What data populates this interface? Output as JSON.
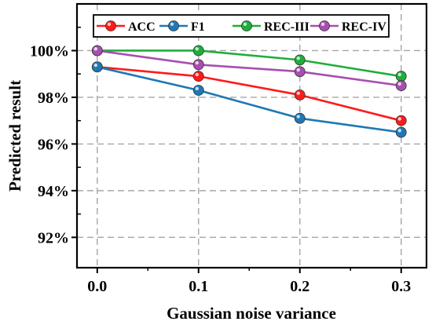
{
  "chart_data": {
    "type": "line",
    "title": "",
    "xlabel": "Gaussian noise variance",
    "ylabel": "Predicted result",
    "x": [
      0.0,
      0.1,
      0.2,
      0.3
    ],
    "x_tick_labels": [
      "0.0",
      "0.1",
      "0.2",
      "0.3"
    ],
    "xlim": [
      -0.02,
      0.325
    ],
    "ylim": [
      90.7,
      102.0
    ],
    "y_ticks": [
      92,
      94,
      96,
      98,
      100
    ],
    "y_tick_labels": [
      "92%",
      "94%",
      "96%",
      "98%",
      "100%"
    ],
    "grid": true,
    "legend_position": "top",
    "series": [
      {
        "name": "ACC",
        "color": "#ff1a1a",
        "values": [
          99.3,
          98.9,
          98.1,
          97.0
        ]
      },
      {
        "name": "F1",
        "color": "#1f78b4",
        "values": [
          99.3,
          98.3,
          97.1,
          96.5
        ]
      },
      {
        "name": "REC-III",
        "color": "#1fad3c",
        "values": [
          100.0,
          100.0,
          99.6,
          98.9
        ]
      },
      {
        "name": "REC-IV",
        "color": "#a64fb0",
        "values": [
          100.0,
          99.4,
          99.1,
          98.5
        ]
      }
    ]
  }
}
